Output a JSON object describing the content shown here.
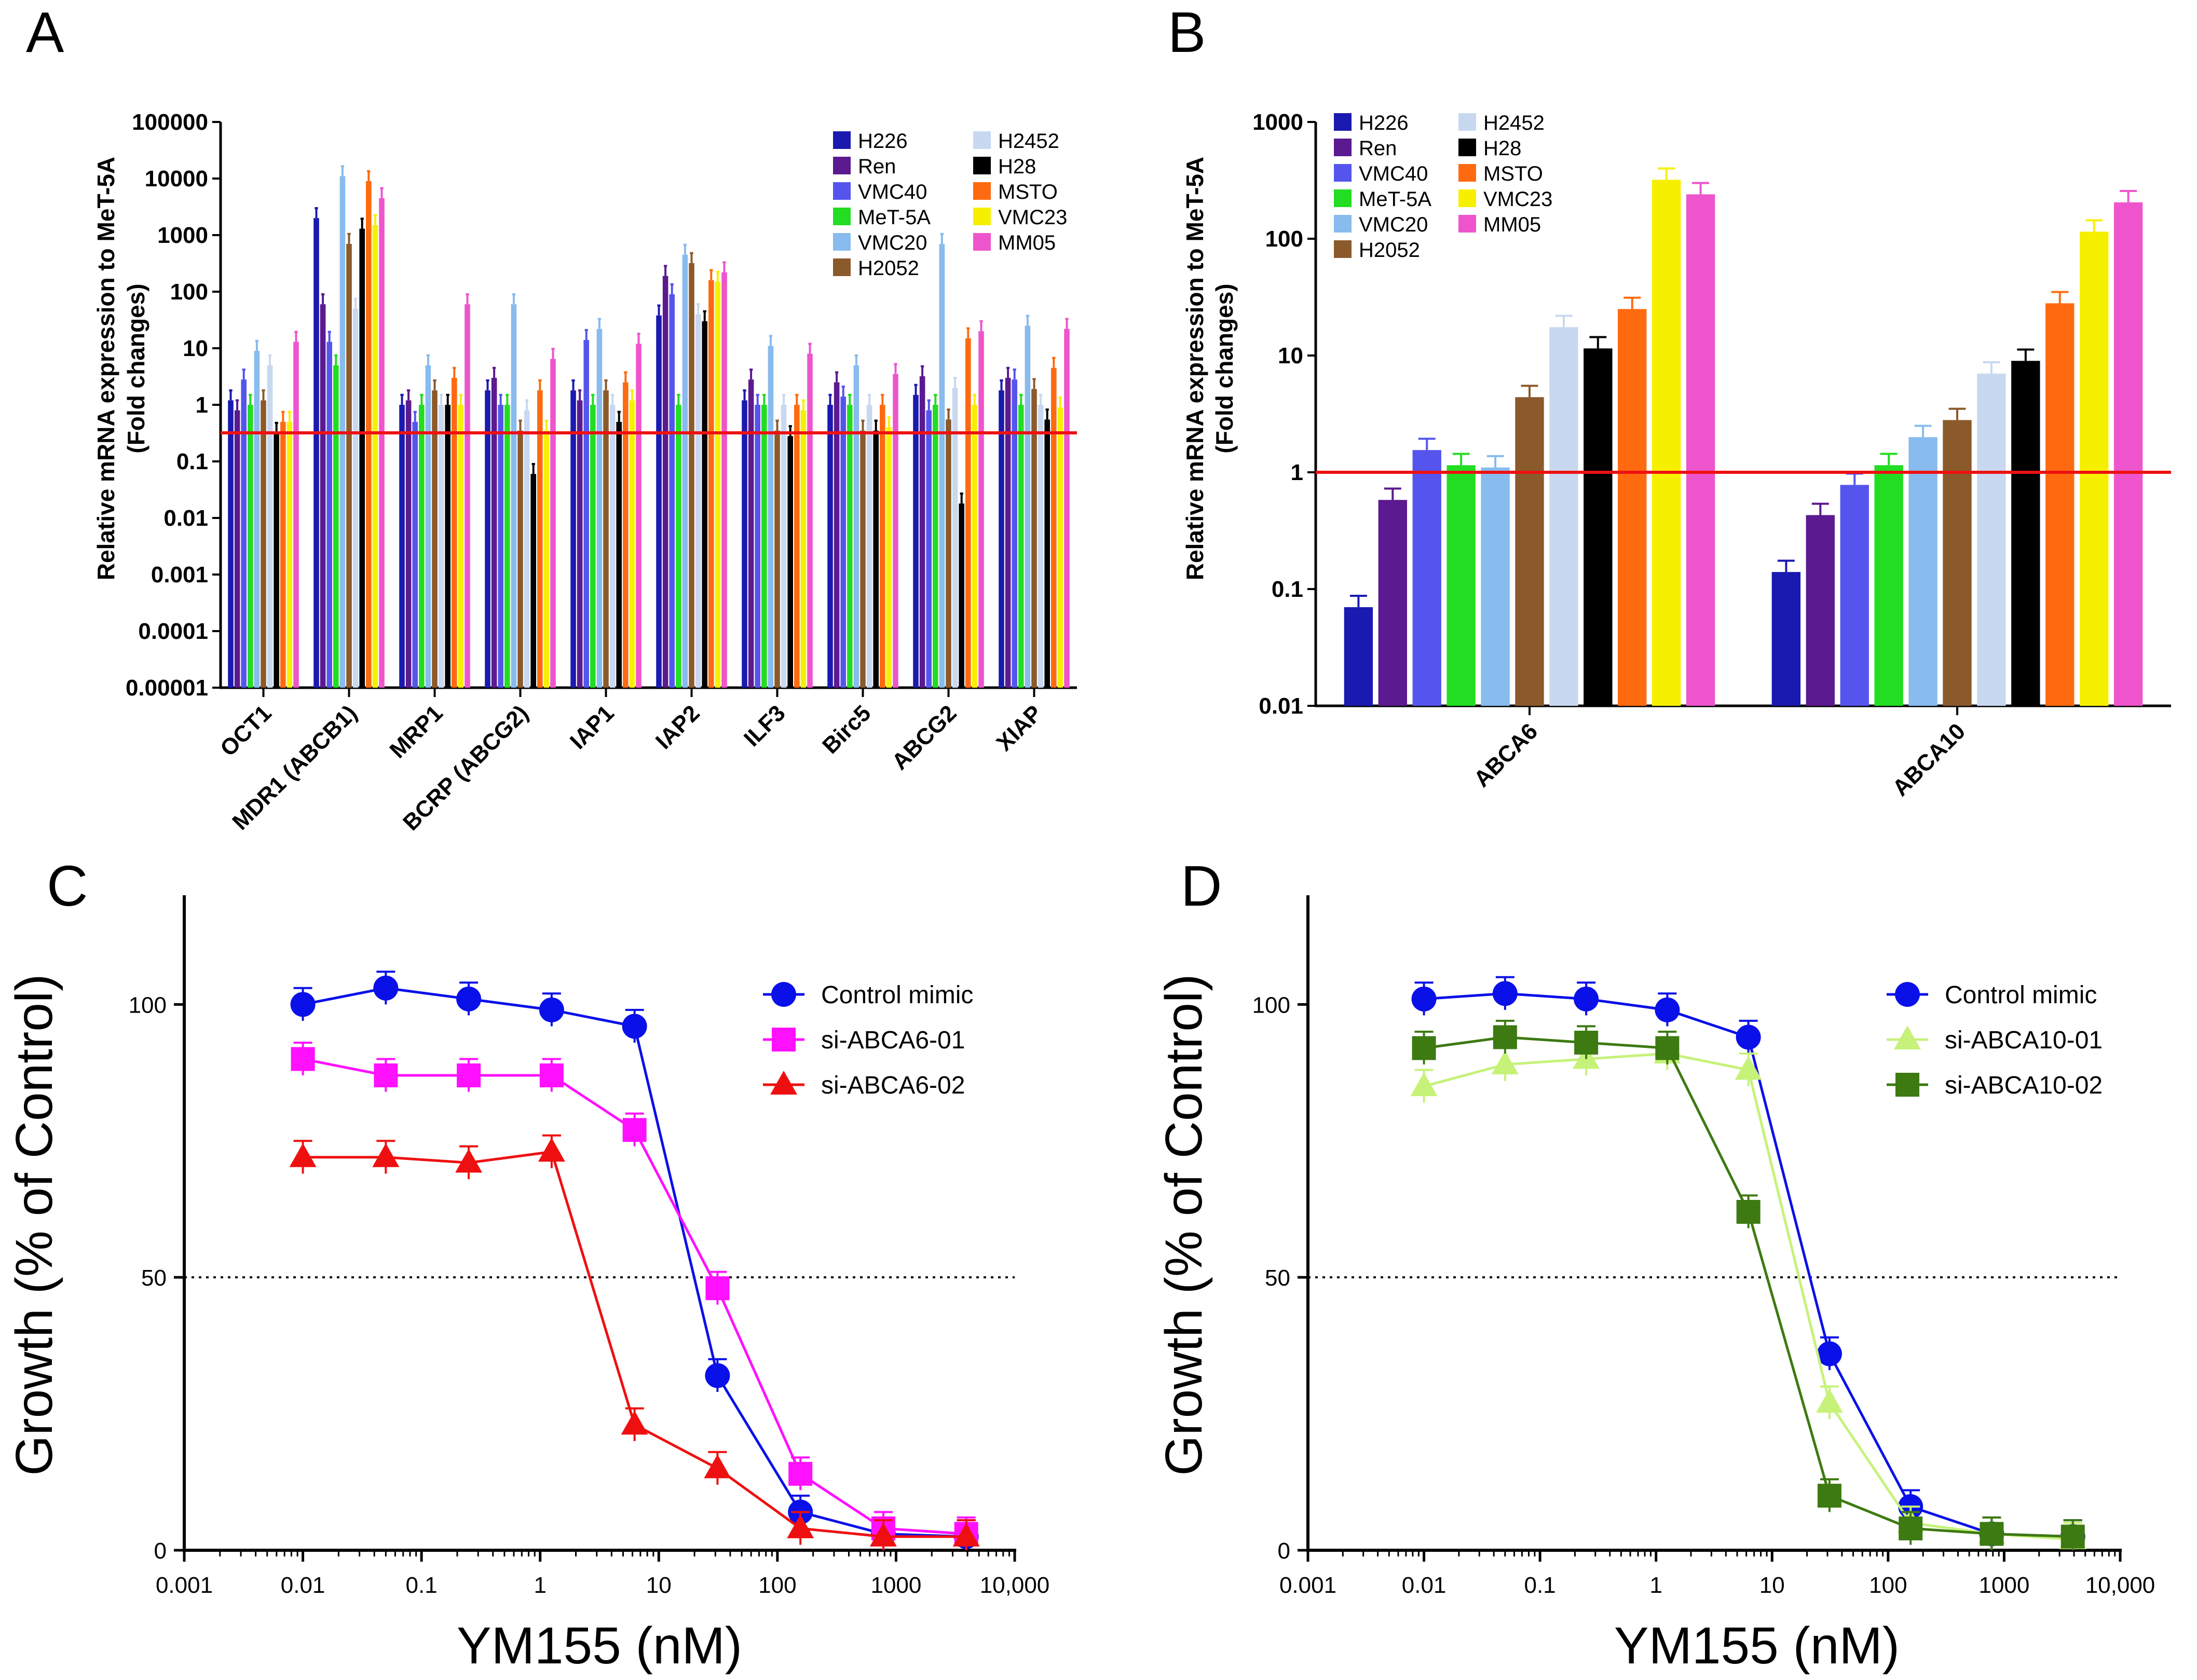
{
  "chart_data": [
    {
      "panel_label": "A",
      "type": "bar",
      "scale": "log",
      "ylabel": [
        "Relative mRNA expression to MeT-5A",
        "(Fold changes)"
      ],
      "ylim": [
        1e-05,
        100000
      ],
      "y_ticks": [
        "100000",
        "10000",
        "1000",
        "100",
        "10",
        "1",
        "0.1",
        "0.01",
        "0.001",
        "0.0001",
        "0.00001"
      ],
      "reference_line": 0.32,
      "categories": [
        "OCT1",
        "MDR1 (ABCB1)",
        "MRP1",
        "BCRP (ABCG2)",
        "IAP1",
        "IAP2",
        "ILF3",
        "Birc5",
        "ABCG2",
        "XIAP"
      ],
      "series": [
        {
          "name": "H226",
          "color": "#1a1ab0",
          "values": [
            1.2,
            2000,
            1.0,
            1.8,
            1.8,
            38,
            1.2,
            1.0,
            1.5,
            1.8
          ]
        },
        {
          "name": "Ren",
          "color": "#5b1a8f",
          "values": [
            0.8,
            60,
            1.2,
            3.0,
            1.2,
            190,
            2.8,
            2.5,
            3.2,
            3.0
          ]
        },
        {
          "name": "VMC40",
          "color": "#5555ee",
          "values": [
            2.8,
            13,
            0.5,
            1.0,
            14,
            90,
            1.0,
            1.4,
            0.8,
            2.8
          ]
        },
        {
          "name": "MeT-5A",
          "color": "#22dd22",
          "values": [
            1.0,
            5.0,
            1.0,
            1.0,
            1.0,
            1.0,
            1.0,
            1.0,
            1.0,
            1.0
          ]
        },
        {
          "name": "VMC20",
          "color": "#88bbee",
          "values": [
            9.0,
            11000,
            5.0,
            60,
            22,
            450,
            11,
            5.0,
            700,
            25
          ]
        },
        {
          "name": "H2052",
          "color": "#8b5a2b",
          "values": [
            1.2,
            700,
            1.8,
            0.35,
            1.8,
            320,
            0.35,
            0.35,
            0.55,
            1.9
          ]
        },
        {
          "name": "H2452",
          "color": "#c8d8f0",
          "values": [
            5.0,
            50,
            1.0,
            0.8,
            1.0,
            40,
            1.0,
            1.0,
            2.0,
            1.0
          ]
        },
        {
          "name": "H28",
          "color": "#000000",
          "values": [
            0.32,
            1300,
            1.0,
            0.06,
            0.5,
            30,
            0.28,
            0.35,
            0.018,
            0.55
          ]
        },
        {
          "name": "MSTO",
          "color": "#ff6a10",
          "values": [
            0.5,
            9000,
            3.0,
            1.8,
            2.5,
            160,
            1.0,
            1.0,
            15,
            4.5
          ]
        },
        {
          "name": "VMC23",
          "color": "#f6f000",
          "values": [
            0.5,
            1500,
            1.0,
            0.35,
            1.2,
            150,
            0.8,
            0.4,
            1.0,
            0.9
          ]
        },
        {
          "name": "MM05",
          "color": "#ee55cc",
          "values": [
            13,
            4500,
            60,
            6.5,
            12,
            220,
            8.0,
            3.5,
            20,
            22
          ]
        }
      ]
    },
    {
      "panel_label": "B",
      "type": "bar",
      "scale": "log",
      "ylabel": [
        "Relative mRNA expression to MeT-5A",
        "(Fold changes)"
      ],
      "ylim": [
        0.01,
        1000
      ],
      "y_ticks": [
        "1000",
        "100",
        "10",
        "1",
        "0.1",
        "0.01"
      ],
      "reference_line": 1,
      "categories": [
        "ABCA6",
        "ABCA10"
      ],
      "series": [
        {
          "name": "H226",
          "color": "#1a1ab0",
          "values": [
            0.07,
            0.14
          ]
        },
        {
          "name": "Ren",
          "color": "#5b1a8f",
          "values": [
            0.58,
            0.43
          ]
        },
        {
          "name": "VMC40",
          "color": "#5555ee",
          "values": [
            1.55,
            0.78
          ]
        },
        {
          "name": "MeT-5A",
          "color": "#22dd22",
          "values": [
            1.15,
            1.15
          ]
        },
        {
          "name": "VMC20",
          "color": "#88bbee",
          "values": [
            1.1,
            2.0
          ]
        },
        {
          "name": "H2052",
          "color": "#8b5a2b",
          "values": [
            4.4,
            2.8
          ]
        },
        {
          "name": "H2452",
          "color": "#c8d8f0",
          "values": [
            17.5,
            7.0
          ]
        },
        {
          "name": "H28",
          "color": "#000000",
          "values": [
            11.5,
            9.0
          ]
        },
        {
          "name": "MSTO",
          "color": "#ff6a10",
          "values": [
            25,
            28
          ]
        },
        {
          "name": "VMC23",
          "color": "#f6f000",
          "values": [
            320,
            115
          ]
        },
        {
          "name": "MM05",
          "color": "#ee55cc",
          "values": [
            240,
            205
          ]
        }
      ]
    },
    {
      "panel_label": "C",
      "type": "line",
      "scale": "log-x",
      "xlabel": "YM155 (nM)",
      "ylabel": "Growth (% of Control)",
      "xlim": [
        0.001,
        10000
      ],
      "ylim": [
        0,
        120
      ],
      "x_ticks": [
        "0.001",
        "0.01",
        "0.1",
        "1",
        "10",
        "100",
        "1000",
        "10,000"
      ],
      "y_ticks": [
        "0",
        "50",
        "100"
      ],
      "reference_line": 50,
      "x": [
        0.01,
        0.05,
        0.25,
        1.25,
        6.25,
        31.25,
        156.25,
        781.25,
        3906.25
      ],
      "series": [
        {
          "name": "Control mimic",
          "color": "#0a10e8",
          "marker": "circle",
          "values": [
            100,
            103,
            101,
            99,
            96,
            32,
            7,
            3,
            2.5
          ]
        },
        {
          "name": "si-ABCA6-01",
          "color": "#ff10ff",
          "marker": "square",
          "values": [
            90,
            87,
            87,
            87,
            77,
            48,
            14,
            4,
            3
          ]
        },
        {
          "name": "si-ABCA6-02",
          "color": "#ee1010",
          "marker": "triangle",
          "values": [
            72,
            72,
            71,
            73,
            23,
            15,
            4,
            2.5,
            2.5
          ]
        }
      ]
    },
    {
      "panel_label": "D",
      "type": "line",
      "scale": "log-x",
      "xlabel": "YM155 (nM)",
      "ylabel": "Growth (% of Control)",
      "xlim": [
        0.001,
        10000
      ],
      "ylim": [
        0,
        120
      ],
      "x_ticks": [
        "0.001",
        "0.01",
        "0.1",
        "1",
        "10",
        "100",
        "1000",
        "10,000"
      ],
      "y_ticks": [
        "0",
        "50",
        "100"
      ],
      "reference_line": 50,
      "x": [
        0.01,
        0.05,
        0.25,
        1.25,
        6.25,
        31.25,
        156.25,
        781.25,
        3906.25
      ],
      "series": [
        {
          "name": "Control mimic",
          "color": "#0a10e8",
          "marker": "circle",
          "values": [
            101,
            102,
            101,
            99,
            94,
            36,
            8,
            3,
            2.5
          ]
        },
        {
          "name": "si-ABCA10-01",
          "color": "#c6f27a",
          "marker": "triangle",
          "values": [
            85,
            89,
            90,
            91,
            88,
            27,
            5,
            3,
            2
          ]
        },
        {
          "name": "si-ABCA10-02",
          "color": "#3d7a12",
          "marker": "square",
          "values": [
            92,
            94,
            93,
            92,
            62,
            10,
            4,
            3,
            2.5
          ]
        }
      ]
    }
  ]
}
